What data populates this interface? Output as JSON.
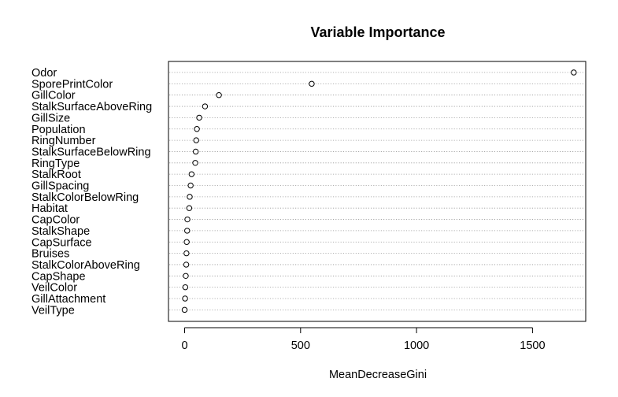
{
  "chart_data": {
    "type": "scatter",
    "title": "Variable Importance",
    "xlabel": "MeanDecreaseGini",
    "ylabel": "",
    "xlim": [
      0,
      1700
    ],
    "xticks": [
      0,
      500,
      1000,
      1500
    ],
    "grid": "horizontal dotted lines per variable",
    "variables": [
      {
        "name": "Odor",
        "value": 1678
      },
      {
        "name": "SporePrintColor",
        "value": 548
      },
      {
        "name": "GillColor",
        "value": 148
      },
      {
        "name": "StalkSurfaceAboveRing",
        "value": 88
      },
      {
        "name": "GillSize",
        "value": 63
      },
      {
        "name": "Population",
        "value": 53
      },
      {
        "name": "RingNumber",
        "value": 50
      },
      {
        "name": "StalkSurfaceBelowRing",
        "value": 48
      },
      {
        "name": "RingType",
        "value": 46
      },
      {
        "name": "StalkRoot",
        "value": 30
      },
      {
        "name": "GillSpacing",
        "value": 26
      },
      {
        "name": "StalkColorBelowRing",
        "value": 22
      },
      {
        "name": "Habitat",
        "value": 20
      },
      {
        "name": "CapColor",
        "value": 12
      },
      {
        "name": "StalkShape",
        "value": 11
      },
      {
        "name": "CapSurface",
        "value": 9
      },
      {
        "name": "Bruises",
        "value": 8
      },
      {
        "name": "StalkColorAboveRing",
        "value": 7
      },
      {
        "name": "CapShape",
        "value": 5
      },
      {
        "name": "VeilColor",
        "value": 3
      },
      {
        "name": "GillAttachment",
        "value": 2
      },
      {
        "name": "VeilType",
        "value": 0
      }
    ]
  }
}
